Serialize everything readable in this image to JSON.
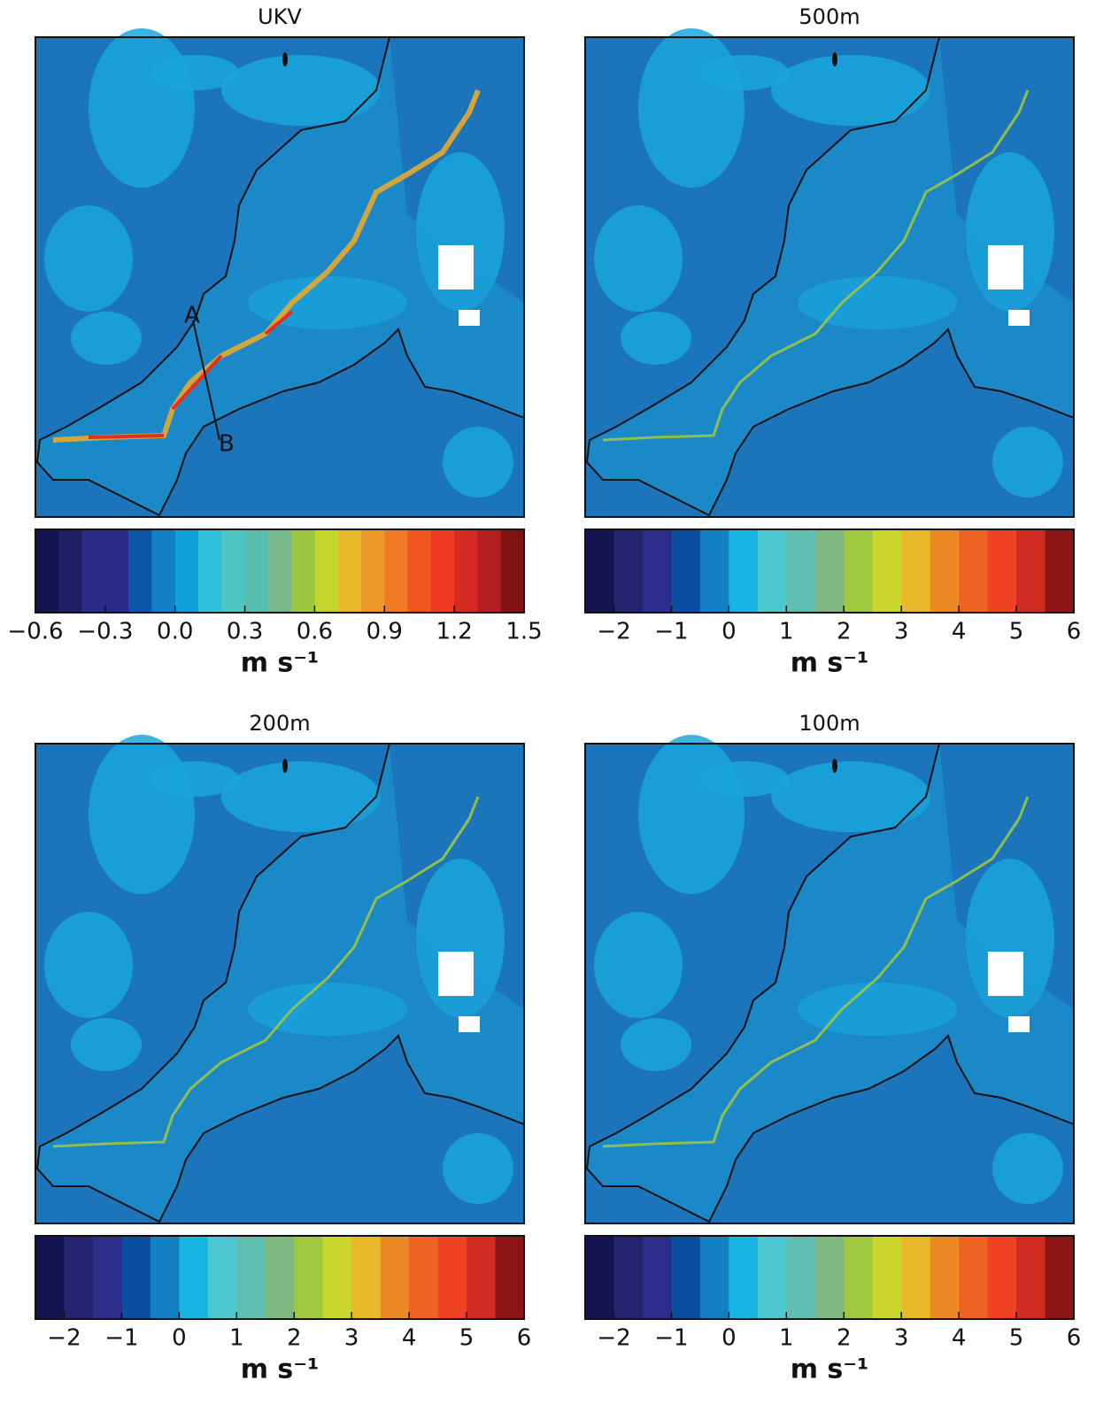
{
  "panels": [
    {
      "title": "UKV",
      "colorbar": {
        "clim": [
          -0.6,
          1.5
        ],
        "ticks": [
          {
            "value": -0.6,
            "label": "−0.6"
          },
          {
            "value": -0.3,
            "label": "−0.3"
          },
          {
            "value": 0,
            "label": "0.0"
          },
          0.3,
          0.6,
          0.9,
          1.2,
          1.5
        ],
        "colors": [
          "#141450",
          "#1f1f66",
          "#2b2b88",
          "#2b2b88",
          "#0d56a6",
          "#1180c4",
          "#0fa0d8",
          "#30bfd8",
          "#4fc6c6",
          "#58bcae",
          "#79b88a",
          "#9cc63f",
          "#c4d62c",
          "#e9b92b",
          "#eb9a27",
          "#ee7a23",
          "#f1541f",
          "#ee3a23",
          "#d42a22",
          "#b32020",
          "#7f1412"
        ],
        "unit": "m s⁻¹"
      },
      "annotations": [
        "A",
        "B"
      ]
    },
    {
      "title": "500m",
      "colorbar": {
        "clim": [
          -2.5,
          6
        ],
        "ticks": [
          {
            "value": -2,
            "label": "−2"
          },
          {
            "value": -1,
            "label": "−1"
          },
          0,
          1,
          2,
          3,
          4,
          5,
          6
        ],
        "colors": [
          "#141450",
          "#24246f",
          "#2d2d8c",
          "#0b4d9f",
          "#1380c4",
          "#18b4e2",
          "#4ec8d0",
          "#5ebfb0",
          "#80b882",
          "#9fc83f",
          "#cad62c",
          "#e9b92b",
          "#eb8a25",
          "#ee6322",
          "#ef4123",
          "#d02c22",
          "#8c1515"
        ],
        "unit": "m s⁻¹"
      }
    },
    {
      "title": "200m",
      "colorbar": {
        "clim": [
          -2.5,
          6
        ],
        "ticks": [
          {
            "value": -2,
            "label": "−2"
          },
          {
            "value": -1,
            "label": "−1"
          },
          0,
          1,
          2,
          3,
          4,
          5,
          6
        ],
        "colors": [
          "#141450",
          "#24246f",
          "#2d2d8c",
          "#0b4d9f",
          "#1380c4",
          "#18b4e2",
          "#4ec8d0",
          "#5ebfb0",
          "#80b882",
          "#9fc83f",
          "#cad62c",
          "#e9b92b",
          "#eb8a25",
          "#ee6322",
          "#ef4123",
          "#d02c22",
          "#8c1515"
        ],
        "unit": "m s⁻¹"
      }
    },
    {
      "title": "100m",
      "colorbar": {
        "clim": [
          -2.5,
          6
        ],
        "ticks": [
          {
            "value": -2,
            "label": "−2"
          },
          {
            "value": -1,
            "label": "−1"
          },
          0,
          1,
          2,
          3,
          4,
          5,
          6
        ],
        "colors": [
          "#141450",
          "#24246f",
          "#2d2d8c",
          "#0b4d9f",
          "#1380c4",
          "#18b4e2",
          "#4ec8d0",
          "#5ebfb0",
          "#80b882",
          "#9fc83f",
          "#cad62c",
          "#e9b92b",
          "#eb8a25",
          "#ee6322",
          "#ef4123",
          "#d02c22",
          "#8c1515"
        ],
        "unit": "m s⁻¹"
      }
    }
  ]
}
